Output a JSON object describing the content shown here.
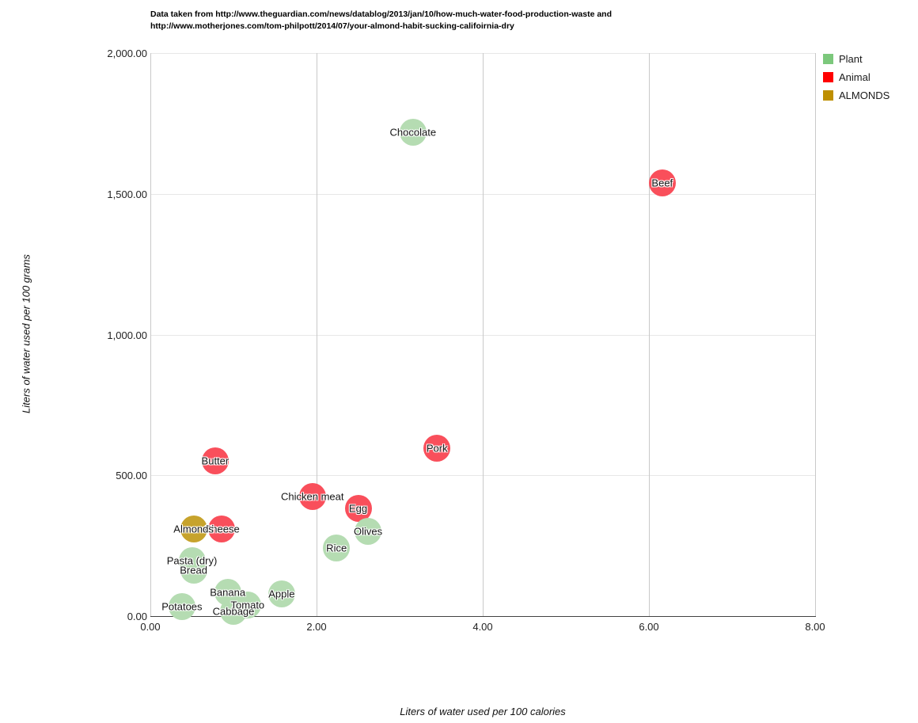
{
  "header": {
    "title_line1": "Data taken from http://www.theguardian.com/news/datablog/2013/jan/10/how-much-water-food-production-waste and",
    "title_line2": "http://www.motherjones.com/tom-philpott/2014/07/your-almond-habit-sucking-califoirnia-dry"
  },
  "chart_data": {
    "type": "scatter",
    "title": "Data taken from http://www.theguardian.com/news/datablog/2013/jan/10/how-much-water-food-production-waste and http://www.motherjones.com/tom-philpott/2014/07/your-almond-habit-sucking-califoirnia-dry",
    "xlabel": "Liters of water used per 100 calories",
    "ylabel": "Liters of water used per 100 grams",
    "xlim": [
      0,
      8
    ],
    "ylim": [
      0,
      2000
    ],
    "grid": true,
    "legend_position": "top-right",
    "x_ticks": [
      {
        "value": 0,
        "label": "0.00"
      },
      {
        "value": 2,
        "label": "2.00"
      },
      {
        "value": 4,
        "label": "4.00"
      },
      {
        "value": 6,
        "label": "6.00"
      },
      {
        "value": 8,
        "label": "8.00"
      }
    ],
    "y_ticks": [
      {
        "value": 0,
        "label": "0.00"
      },
      {
        "value": 500,
        "label": "500.00"
      },
      {
        "value": 1000,
        "label": "1,000.00"
      },
      {
        "value": 1500,
        "label": "1,500.00"
      },
      {
        "value": 2000,
        "label": "2,000.00"
      }
    ],
    "legend": [
      {
        "label": "Plant",
        "series": "plant",
        "color": "#7CC87C"
      },
      {
        "label": "Animal",
        "series": "animal",
        "color": "#FF0000"
      },
      {
        "label": "ALMONDS",
        "series": "almonds",
        "color": "#BE8F00"
      }
    ],
    "bubble_colors": {
      "plant": "#B5DCB2",
      "animal": "#F94F5B",
      "almonds": "#C7A32C"
    },
    "points": [
      {
        "label": "Chocolate",
        "series": "plant",
        "x": 3.16,
        "y": 1720
      },
      {
        "label": "Beef",
        "series": "animal",
        "x": 6.16,
        "y": 1540
      },
      {
        "label": "Pork",
        "series": "animal",
        "x": 3.45,
        "y": 595
      },
      {
        "label": "Butter",
        "series": "animal",
        "x": 0.78,
        "y": 552
      },
      {
        "label": "Chicken meat",
        "series": "animal",
        "x": 1.95,
        "y": 425
      },
      {
        "label": "Egg",
        "series": "animal",
        "x": 2.5,
        "y": 382
      },
      {
        "label": "Olives",
        "series": "plant",
        "x": 2.62,
        "y": 300
      },
      {
        "label": "Rice",
        "series": "plant",
        "x": 2.24,
        "y": 242
      },
      {
        "label": "Cheese",
        "series": "animal",
        "x": 0.86,
        "y": 310
      },
      {
        "label": "Almonds",
        "series": "almonds",
        "x": 0.52,
        "y": 310
      },
      {
        "label": "Pasta (dry)",
        "series": "plant",
        "x": 0.5,
        "y": 196
      },
      {
        "label": "Bread",
        "series": "plant",
        "x": 0.52,
        "y": 163
      },
      {
        "label": "Banana",
        "series": "plant",
        "x": 0.93,
        "y": 84
      },
      {
        "label": "Apple",
        "series": "plant",
        "x": 1.58,
        "y": 80
      },
      {
        "label": "Potatoes",
        "series": "plant",
        "x": 0.38,
        "y": 35
      },
      {
        "label": "Cabbage",
        "series": "plant",
        "x": 1.0,
        "y": 18
      },
      {
        "label": "Tomato",
        "series": "plant",
        "x": 1.17,
        "y": 38
      }
    ]
  }
}
